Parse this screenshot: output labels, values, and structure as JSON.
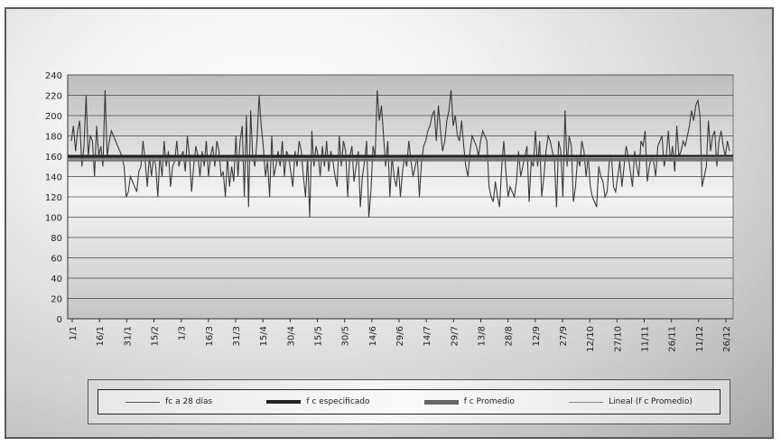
{
  "chart_data": {
    "type": "line",
    "ylim": [
      0,
      240
    ],
    "yticks": [
      0,
      20,
      40,
      60,
      80,
      100,
      120,
      140,
      160,
      180,
      200,
      220,
      240
    ],
    "x_tick_labels": [
      "1/1",
      "16/1",
      "31/1",
      "15/2",
      "1/3",
      "16/3",
      "31/3",
      "15/4",
      "30/4",
      "15/5",
      "30/5",
      "14/6",
      "29/6",
      "14/7",
      "29/7",
      "13/8",
      "28/8",
      "12/9",
      "27/9",
      "12/10",
      "27/10",
      "11/11",
      "26/11",
      "11/12",
      "26/12"
    ],
    "grid": true,
    "legend_position": "bottom",
    "series": [
      {
        "name": "fc a 28 días",
        "values": [
          175,
          190,
          165,
          185,
          195,
          150,
          170,
          220,
          160,
          180,
          175,
          140,
          190,
          160,
          170,
          150,
          225,
          160,
          175,
          185,
          180,
          175,
          170,
          165,
          160,
          150,
          120,
          125,
          140,
          135,
          130,
          125,
          145,
          150,
          175,
          155,
          130,
          160,
          140,
          160,
          150,
          120,
          160,
          140,
          175,
          150,
          165,
          130,
          150,
          155,
          175,
          150,
          160,
          165,
          145,
          180,
          160,
          125,
          150,
          170,
          160,
          140,
          165,
          150,
          175,
          140,
          160,
          170,
          150,
          175,
          165,
          140,
          145,
          120,
          160,
          130,
          150,
          135,
          180,
          140,
          175,
          190,
          120,
          200,
          110,
          205,
          160,
          150,
          175,
          220,
          190,
          170,
          140,
          155,
          120,
          180,
          140,
          150,
          165,
          150,
          175,
          140,
          165,
          160,
          145,
          130,
          165,
          150,
          175,
          165,
          140,
          120,
          160,
          100,
          185,
          150,
          170,
          160,
          140,
          170,
          150,
          175,
          145,
          165,
          155,
          140,
          130,
          180,
          150,
          175,
          165,
          120,
          160,
          170,
          135,
          150,
          165,
          110,
          140,
          155,
          175,
          100,
          125,
          170,
          160,
          225,
          195,
          210,
          180,
          150,
          175,
          120,
          160,
          140,
          130,
          150,
          120,
          145,
          160,
          150,
          175,
          155,
          140,
          150,
          160,
          120,
          155,
          170,
          175,
          185,
          190,
          200,
          205,
          175,
          210,
          185,
          165,
          175,
          195,
          205,
          225,
          190,
          200,
          180,
          175,
          195,
          170,
          150,
          140,
          165,
          180,
          175,
          170,
          160,
          175,
          185,
          180,
          175,
          130,
          120,
          115,
          135,
          120,
          110,
          150,
          175,
          145,
          120,
          130,
          125,
          120,
          135,
          165,
          140,
          150,
          160,
          170,
          115,
          155,
          150,
          185,
          150,
          175,
          120,
          140,
          165,
          180,
          175,
          165,
          155,
          110,
          175,
          165,
          120,
          205,
          150,
          180,
          170,
          115,
          130,
          160,
          150,
          175,
          165,
          140,
          160,
          130,
          120,
          115,
          110,
          150,
          140,
          135,
          120,
          125,
          155,
          160,
          130,
          125,
          140,
          155,
          130,
          150,
          170,
          160,
          145,
          130,
          165,
          150,
          140,
          175,
          170,
          185,
          135,
          150,
          160,
          155,
          140,
          170,
          175,
          180,
          150,
          160,
          185,
          155,
          170,
          145,
          190,
          160,
          165,
          175,
          170,
          180,
          190,
          205,
          195,
          210,
          215,
          200,
          130,
          140,
          150,
          195,
          165,
          180,
          185,
          150,
          175,
          185,
          170,
          160,
          175,
          165
        ],
        "color": "#3a3a3a"
      },
      {
        "name": "f c especificado",
        "values": [
          160,
          160
        ],
        "color": "#222222"
      },
      {
        "name": "f c Promedio",
        "values": [
          158,
          158
        ],
        "color": "#6a6a6a"
      },
      {
        "name": "Lineal (f c Promedio)",
        "values": [
          157,
          159
        ],
        "color": "#9a9a9a"
      }
    ]
  }
}
